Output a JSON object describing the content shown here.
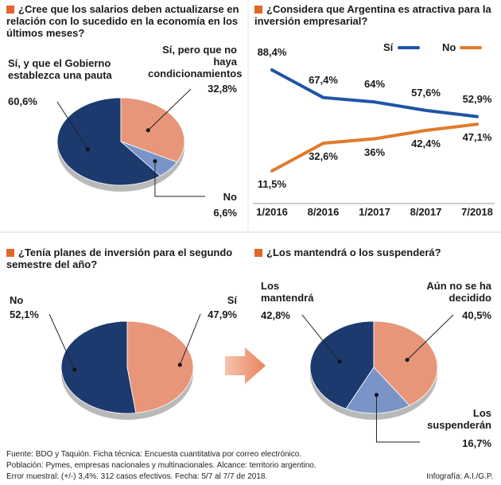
{
  "chart_data": [
    {
      "type": "pie",
      "title": "¿Cree que los salarios deben actualizarse en relación con lo sucedido en la economía en los últimos meses?",
      "categories": [
        "Sí, y que el Gobierno establezca una pauta",
        "Sí, pero que no haya condicionamientos",
        "No"
      ],
      "values": [
        60.6,
        32.8,
        6.6
      ],
      "value_labels": [
        "60,6%",
        "32,8%",
        "6,6%"
      ],
      "colors": [
        "#1c3a6e",
        "#e8967a",
        "#7a94c8"
      ]
    },
    {
      "type": "line",
      "title": "¿Considera que Argentina es atractiva para la inversión empresarial?",
      "categories": [
        "1/2016",
        "8/2016",
        "1/2017",
        "8/2017",
        "7/2018"
      ],
      "series": [
        {
          "name": "Sí",
          "color": "#1f55a6",
          "values": [
            88.4,
            67.4,
            64,
            57.6,
            52.9
          ],
          "value_labels": [
            "88,4%",
            "67,4%",
            "64%",
            "57,6%",
            "52,9%"
          ]
        },
        {
          "name": "No",
          "color": "#e07b2c",
          "values": [
            11.5,
            32.6,
            36,
            42.4,
            47.1
          ],
          "value_labels": [
            "11,5%",
            "32,6%",
            "36%",
            "42,4%",
            "47,1%"
          ]
        }
      ]
    },
    {
      "type": "pie",
      "title": "¿Tenía planes de inversión para el segundo semestre del año?",
      "categories": [
        "No",
        "Sí"
      ],
      "values": [
        52.1,
        47.9
      ],
      "value_labels": [
        "52,1%",
        "47,9%"
      ],
      "colors": [
        "#1c3a6e",
        "#e8967a"
      ]
    },
    {
      "type": "pie",
      "title": "¿Los mantendrá o los suspenderá?",
      "categories": [
        "Los mantendrá",
        "Aún no se ha decidido",
        "Los suspenderán"
      ],
      "values": [
        42.8,
        40.5,
        16.7
      ],
      "value_labels": [
        "42,8%",
        "40,5%",
        "16,7%"
      ],
      "colors": [
        "#1c3a6e",
        "#e8967a",
        "#7a94c8"
      ]
    }
  ],
  "footer": {
    "lines": [
      "Fuente: BDO y Taquión. Ficha técnica: Encuesta cuantitativa por correo electrónico.",
      "Población: Pymes, empresas nacionales y multinacionales. Alcance: territorio argentino.",
      "Error muestral: (+/-) 3,4%. 312 casos efectivos. Fecha: 5/7 al 7/7 de 2018."
    ],
    "credit": "Infografía: A.I./G.P."
  }
}
